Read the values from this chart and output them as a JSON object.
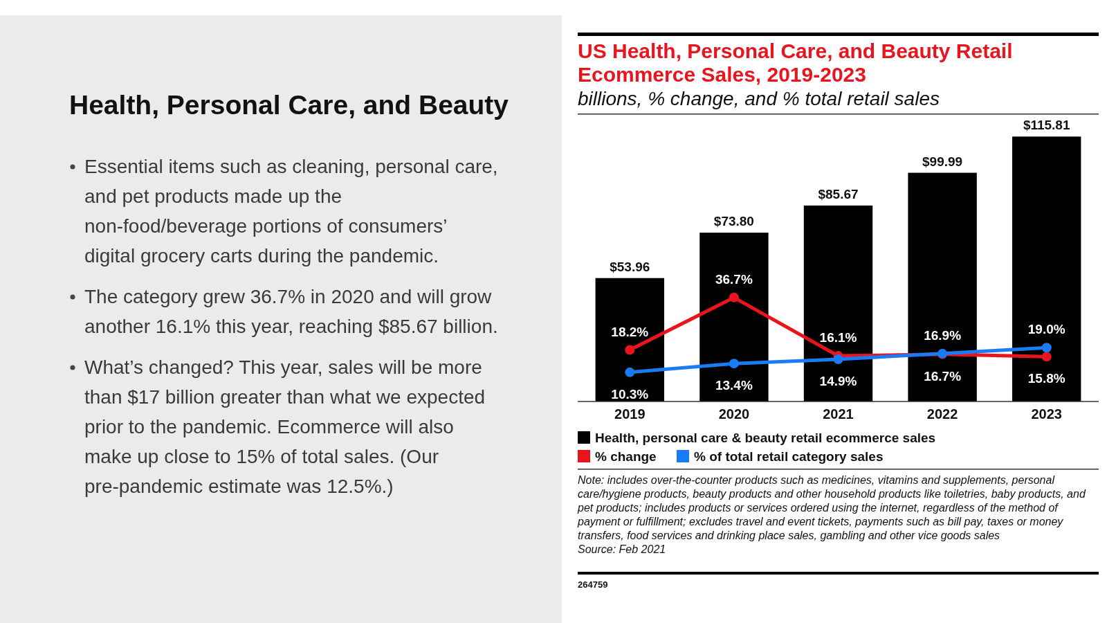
{
  "chart_data": [
    {
      "type": "other",
      "title": "Health, Personal Care, and Beauty",
      "annotations": [
        "Essential items such as cleaning, personal care, and pet products made up the non-food/beverage portions of consumers’ digital grocery carts during the pandemic.",
        "The category grew 36.7% in 2020 and will grow another 16.1% this year, reaching $85.67 billion.",
        "What’s changed? This year, sales will be more than $17 billion greater than what we expected prior to the pandemic. Ecommerce will also make up close to 15% of total sales. (Our pre-pandemic estimate was 12.5%.)"
      ]
    },
    {
      "type": "bar",
      "title": "US Health, Personal Care, and Beauty Retail Ecommerce Sales, 2019-2023",
      "subtitle": "billions, % change, and % total retail sales",
      "categories": [
        "2019",
        "2020",
        "2021",
        "2022",
        "2023"
      ],
      "tick_labels": "x",
      "legend": "bottom",
      "marker": "circle",
      "series": [
        {
          "name": "Health, personal care & beauty retail ecommerce sales",
          "color": "#000000",
          "values": [
            53.96,
            73.8,
            85.67,
            99.99,
            115.81
          ],
          "value_labels": [
            "$53.96",
            "$73.80",
            "$85.67",
            "$99.99",
            "$115.81"
          ]
        },
        {
          "type": "line",
          "axis": "y2",
          "name": "% change",
          "color": "#e8141e",
          "values": [
            18.2,
            36.7,
            16.1,
            16.7,
            15.8
          ],
          "value_labels": [
            "18.2%",
            "36.7%",
            "16.1%",
            "16.7%",
            "15.8%"
          ]
        },
        {
          "type": "line",
          "axis": "y2",
          "name": "% of total retail category sales",
          "color": "#1a7cf5",
          "values": [
            10.3,
            13.4,
            14.9,
            16.9,
            19.0
          ],
          "value_labels": [
            "10.3%",
            "13.4%",
            "14.9%",
            "16.9%",
            "19.0%"
          ]
        }
      ],
      "annotations": [
        "Note: includes over-the-counter products such as medicines, vitamins and supplements, personal care/hygiene products, beauty products and other household products like toiletries, baby products, and pet products; includes products or services ordered using the internet, regardless of the method of payment or fulfillment; excludes travel and event tickets, payments such as bill pay, taxes or money transfers, food services and drinking place sales, gambling and other vice goods sales",
        "Source: Feb 2021",
        "264759"
      ]
    }
  ]
}
